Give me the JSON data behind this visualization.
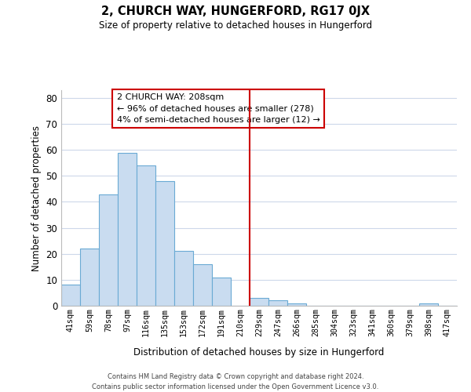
{
  "title": "2, CHURCH WAY, HUNGERFORD, RG17 0JX",
  "subtitle": "Size of property relative to detached houses in Hungerford",
  "xlabel": "Distribution of detached houses by size in Hungerford",
  "ylabel": "Number of detached properties",
  "bar_labels": [
    "41sqm",
    "59sqm",
    "78sqm",
    "97sqm",
    "116sqm",
    "135sqm",
    "153sqm",
    "172sqm",
    "191sqm",
    "210sqm",
    "229sqm",
    "247sqm",
    "266sqm",
    "285sqm",
    "304sqm",
    "323sqm",
    "341sqm",
    "360sqm",
    "379sqm",
    "398sqm",
    "417sqm"
  ],
  "bar_values": [
    8,
    22,
    43,
    59,
    54,
    48,
    21,
    16,
    11,
    0,
    3,
    2,
    1,
    0,
    0,
    0,
    0,
    0,
    0,
    1,
    0
  ],
  "bar_color": "#c9dcf0",
  "bar_edge_color": "#6aaad4",
  "vline_x": 9.5,
  "vline_color": "#cc0000",
  "ylim": [
    0,
    83
  ],
  "yticks": [
    0,
    10,
    20,
    30,
    40,
    50,
    60,
    70,
    80
  ],
  "annotation_title": "2 CHURCH WAY: 208sqm",
  "annotation_line1": "← 96% of detached houses are smaller (278)",
  "annotation_line2": "4% of semi-detached houses are larger (12) →",
  "footer_line1": "Contains HM Land Registry data © Crown copyright and database right 2024.",
  "footer_line2": "Contains public sector information licensed under the Open Government Licence v3.0.",
  "background_color": "#ffffff",
  "grid_color": "#cdd8ea"
}
